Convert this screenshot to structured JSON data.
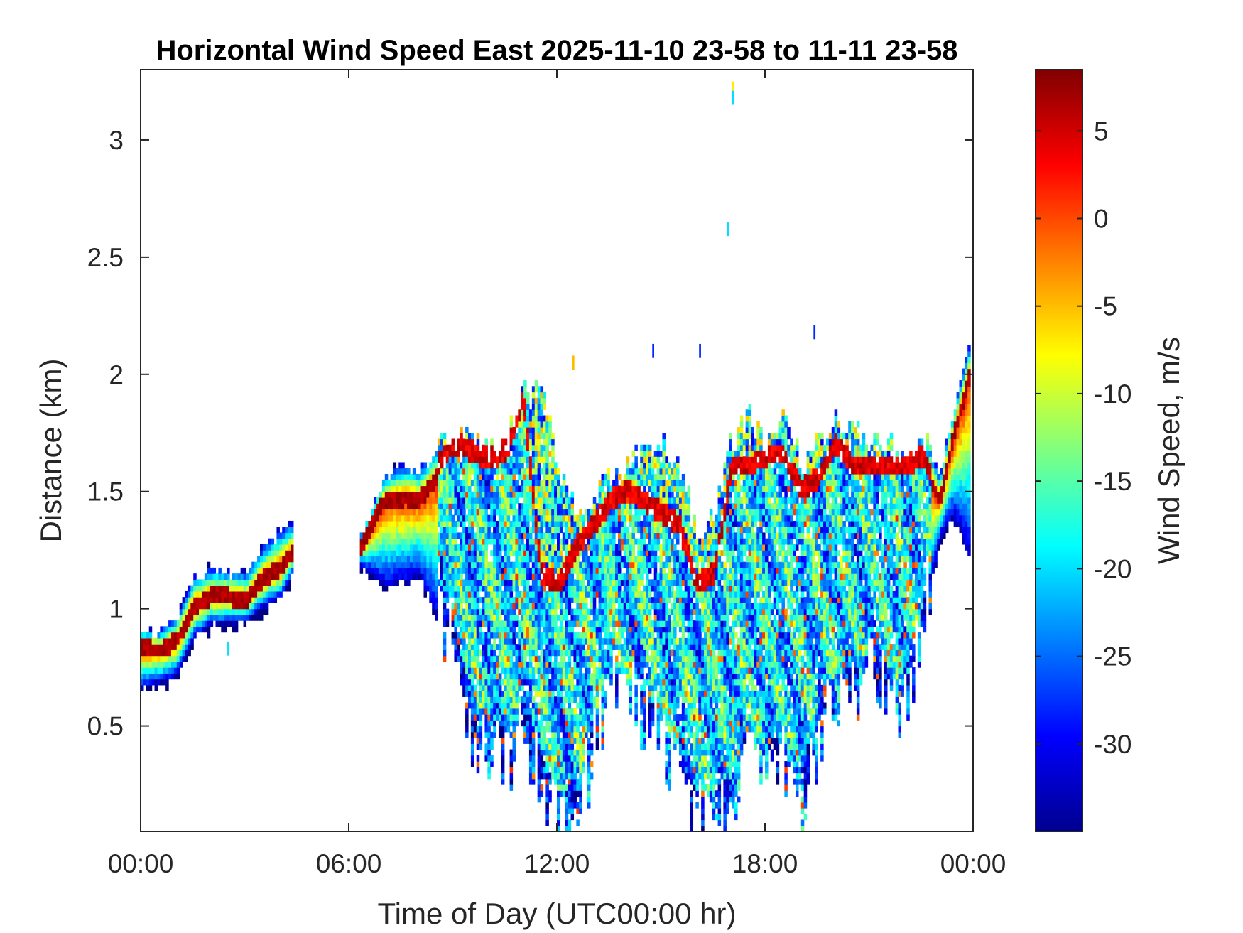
{
  "chart_data": {
    "type": "heatmap",
    "title": "Horizontal Wind Speed East 2025-11-10 23-58 to 11-11 23-58",
    "xlabel": "Time of Day (UTC00:00 hr)",
    "ylabel": "Distance (km)",
    "colorbar_label": "Wind Speed, m/s",
    "x_unit": "hours",
    "xlim": [
      0,
      24
    ],
    "ylim": [
      0.05,
      3.3
    ],
    "clim": [
      -35,
      8.5
    ],
    "colormap": "jet",
    "x_ticks": [
      {
        "value": 0,
        "label": "00:00"
      },
      {
        "value": 6,
        "label": "06:00"
      },
      {
        "value": 12,
        "label": "12:00"
      },
      {
        "value": 18,
        "label": "18:00"
      },
      {
        "value": 24,
        "label": "00:00"
      }
    ],
    "y_ticks": [
      {
        "value": 0.5,
        "label": "0.5"
      },
      {
        "value": 1,
        "label": "1"
      },
      {
        "value": 1.5,
        "label": "1.5"
      },
      {
        "value": 2,
        "label": "2"
      },
      {
        "value": 2.5,
        "label": "2.5"
      },
      {
        "value": 3,
        "label": "3"
      }
    ],
    "colorbar_ticks": [
      {
        "value": 5,
        "label": "5"
      },
      {
        "value": 0,
        "label": "0"
      },
      {
        "value": -5,
        "label": "-5"
      },
      {
        "value": -10,
        "label": "-10"
      },
      {
        "value": -15,
        "label": "-15"
      },
      {
        "value": -20,
        "label": "-20"
      },
      {
        "value": -25,
        "label": "-25"
      },
      {
        "value": -30,
        "label": "-30"
      }
    ],
    "columns": [
      {
        "t": 0.0,
        "base": 0.66,
        "top": 0.9,
        "peak": 0.82,
        "scale": "layer"
      },
      {
        "t": 0.5,
        "base": 0.68,
        "top": 0.89,
        "peak": 0.81,
        "scale": "layer"
      },
      {
        "t": 1.0,
        "base": 0.71,
        "top": 0.95,
        "peak": 0.85,
        "scale": "layer"
      },
      {
        "t": 1.5,
        "base": 0.87,
        "top": 1.12,
        "peak": 1.0,
        "scale": "layer"
      },
      {
        "t": 2.0,
        "base": 0.93,
        "top": 1.16,
        "peak": 1.04,
        "scale": "layer"
      },
      {
        "t": 2.5,
        "base": 0.93,
        "top": 1.15,
        "peak": 1.04,
        "scale": "layer"
      },
      {
        "t": 3.0,
        "base": 0.94,
        "top": 1.14,
        "peak": 1.02,
        "scale": "layer"
      },
      {
        "t": 3.5,
        "base": 1.0,
        "top": 1.25,
        "peak": 1.12,
        "scale": "layer"
      },
      {
        "t": 4.0,
        "base": 1.04,
        "top": 1.32,
        "peak": 1.16,
        "scale": "layer"
      },
      {
        "t": 4.4,
        "base": 1.16,
        "top": 1.36,
        "peak": 1.25,
        "scale": "layer"
      },
      {
        "t": 6.3,
        "base": 1.18,
        "top": 1.3,
        "peak": 1.25,
        "scale": "layer"
      },
      {
        "t": 7.0,
        "base": 1.1,
        "top": 1.56,
        "peak": 1.45,
        "scale": "layer"
      },
      {
        "t": 7.6,
        "base": 1.12,
        "top": 1.6,
        "peak": 1.46,
        "scale": "layer"
      },
      {
        "t": 8.0,
        "base": 1.15,
        "top": 1.58,
        "peak": 1.45,
        "scale": "layer"
      },
      {
        "t": 9.0,
        "base": 0.8,
        "top": 1.75,
        "peak": 1.65,
        "scale": "mix"
      },
      {
        "t": 9.5,
        "base": 0.4,
        "top": 1.7,
        "peak": 1.62,
        "scale": "mix"
      },
      {
        "t": 10.0,
        "base": 0.35,
        "top": 1.66,
        "peak": 1.58,
        "scale": "mix"
      },
      {
        "t": 10.5,
        "base": 0.3,
        "top": 1.7,
        "peak": 1.62,
        "scale": "mix"
      },
      {
        "t": 11.0,
        "base": 0.4,
        "top": 1.9,
        "peak": 1.85,
        "scale": "mix"
      },
      {
        "t": 11.5,
        "base": 0.25,
        "top": 1.96,
        "peak": 1.1,
        "scale": "mix"
      },
      {
        "t": 12.0,
        "base": 0.05,
        "top": 1.6,
        "peak": 1.05,
        "scale": "mix"
      },
      {
        "t": 12.5,
        "base": 0.05,
        "top": 1.4,
        "peak": 1.2,
        "scale": "mix"
      },
      {
        "t": 13.5,
        "base": 0.6,
        "top": 1.55,
        "peak": 1.4,
        "scale": "mix"
      },
      {
        "t": 14.0,
        "base": 0.55,
        "top": 1.6,
        "peak": 1.45,
        "scale": "mix"
      },
      {
        "t": 14.5,
        "base": 0.5,
        "top": 1.65,
        "peak": 1.4,
        "scale": "mix"
      },
      {
        "t": 15.0,
        "base": 0.4,
        "top": 1.7,
        "peak": 1.35,
        "scale": "mix"
      },
      {
        "t": 15.5,
        "base": 0.2,
        "top": 1.6,
        "peak": 1.3,
        "scale": "mix"
      },
      {
        "t": 16.0,
        "base": 0.05,
        "top": 1.3,
        "peak": 1.05,
        "scale": "mix"
      },
      {
        "t": 16.5,
        "base": 0.05,
        "top": 1.4,
        "peak": 1.1,
        "scale": "mix"
      },
      {
        "t": 17.0,
        "base": 0.1,
        "top": 1.7,
        "peak": 1.55,
        "scale": "mix"
      },
      {
        "t": 17.5,
        "base": 0.3,
        "top": 1.8,
        "peak": 1.55,
        "scale": "mix"
      },
      {
        "t": 18.0,
        "base": 0.2,
        "top": 1.7,
        "peak": 1.6,
        "scale": "mix"
      },
      {
        "t": 18.5,
        "base": 0.3,
        "top": 1.8,
        "peak": 1.6,
        "scale": "mix"
      },
      {
        "t": 19.0,
        "base": 0.1,
        "top": 1.6,
        "peak": 1.45,
        "scale": "mix"
      },
      {
        "t": 19.5,
        "base": 0.4,
        "top": 1.7,
        "peak": 1.5,
        "scale": "mix"
      },
      {
        "t": 20.0,
        "base": 0.55,
        "top": 1.8,
        "peak": 1.65,
        "scale": "mix"
      },
      {
        "t": 20.5,
        "base": 0.6,
        "top": 1.75,
        "peak": 1.55,
        "scale": "mix"
      },
      {
        "t": 21.0,
        "base": 0.7,
        "top": 1.7,
        "peak": 1.55,
        "scale": "mix"
      },
      {
        "t": 21.5,
        "base": 0.6,
        "top": 1.7,
        "peak": 1.55,
        "scale": "mix"
      },
      {
        "t": 22.0,
        "base": 0.5,
        "top": 1.65,
        "peak": 1.55,
        "scale": "mix"
      },
      {
        "t": 22.5,
        "base": 0.9,
        "top": 1.75,
        "peak": 1.6,
        "scale": "mix"
      },
      {
        "t": 23.0,
        "base": 1.3,
        "top": 1.55,
        "peak": 1.45,
        "scale": "layer"
      },
      {
        "t": 23.4,
        "base": 1.4,
        "top": 1.85,
        "peak": 1.72,
        "scale": "layer"
      },
      {
        "t": 23.85,
        "base": 1.25,
        "top": 2.1,
        "peak": 1.98,
        "scale": "layer"
      }
    ],
    "isolated_points": [
      {
        "t": 17.05,
        "y": 3.22,
        "v": -7
      },
      {
        "t": 17.05,
        "y": 3.18,
        "v": -20
      },
      {
        "t": 16.9,
        "y": 2.62,
        "v": -20
      },
      {
        "t": 14.75,
        "y": 2.1,
        "v": -28
      },
      {
        "t": 16.1,
        "y": 2.1,
        "v": -28
      },
      {
        "t": 19.4,
        "y": 2.18,
        "v": -28
      },
      {
        "t": 12.45,
        "y": 2.05,
        "v": -5
      },
      {
        "t": 2.5,
        "y": 0.83,
        "v": -20
      }
    ]
  }
}
